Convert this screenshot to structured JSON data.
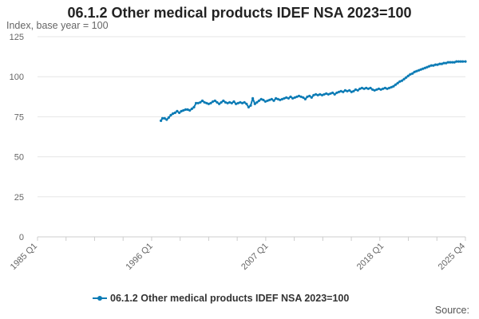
{
  "chart_data": {
    "type": "line",
    "title": "06.1.2 Other medical products IDEF NSA 2023=100",
    "ylabel": "Index, base year = 100",
    "xlabel": "",
    "ylim": [
      0,
      125
    ],
    "yticks": [
      0,
      25,
      50,
      75,
      100,
      125
    ],
    "xlim": [
      1985,
      2025.75
    ],
    "xticks": [
      {
        "label": "1985 Q1",
        "value": 1985
      },
      {
        "label": "1996 Q1",
        "value": 1996
      },
      {
        "label": "2007 Q1",
        "value": 2007
      },
      {
        "label": "2018 Q1",
        "value": 2018
      },
      {
        "label": "2025 Q4",
        "value": 2025.75
      }
    ],
    "series": [
      {
        "name": "06.1.2 Other medical products IDEF NSA 2023=100",
        "color": "#0b7bb5",
        "points": [
          [
            1996.75,
            72.5
          ],
          [
            1996.9,
            74.0
          ],
          [
            1997.1,
            74.0
          ],
          [
            1997.3,
            73.2
          ],
          [
            1997.5,
            74.5
          ],
          [
            1997.7,
            76.0
          ],
          [
            1997.9,
            77.0
          ],
          [
            1998.1,
            77.5
          ],
          [
            1998.3,
            78.5
          ],
          [
            1998.5,
            77.5
          ],
          [
            1998.7,
            78.5
          ],
          [
            1998.9,
            79.0
          ],
          [
            1999.1,
            79.5
          ],
          [
            1999.3,
            79.5
          ],
          [
            1999.5,
            79.0
          ],
          [
            1999.7,
            80.0
          ],
          [
            1999.9,
            81.0
          ],
          [
            2000.1,
            83.5
          ],
          [
            2000.3,
            83.5
          ],
          [
            2000.5,
            84.0
          ],
          [
            2000.7,
            85.0
          ],
          [
            2000.9,
            84.0
          ],
          [
            2001.1,
            83.5
          ],
          [
            2001.3,
            83.0
          ],
          [
            2001.5,
            83.5
          ],
          [
            2001.7,
            84.5
          ],
          [
            2001.9,
            85.0
          ],
          [
            2002.1,
            84.0
          ],
          [
            2002.3,
            83.0
          ],
          [
            2002.5,
            84.0
          ],
          [
            2002.7,
            85.0
          ],
          [
            2002.9,
            84.0
          ],
          [
            2003.1,
            83.5
          ],
          [
            2003.3,
            84.0
          ],
          [
            2003.5,
            83.5
          ],
          [
            2003.7,
            84.5
          ],
          [
            2003.9,
            83.0
          ],
          [
            2004.1,
            83.5
          ],
          [
            2004.3,
            84.0
          ],
          [
            2004.5,
            83.5
          ],
          [
            2004.7,
            84.0
          ],
          [
            2004.9,
            83.0
          ],
          [
            2005.1,
            81.0
          ],
          [
            2005.3,
            82.0
          ],
          [
            2005.5,
            86.5
          ],
          [
            2005.7,
            83.0
          ],
          [
            2005.9,
            84.0
          ],
          [
            2006.1,
            85.0
          ],
          [
            2006.3,
            86.0
          ],
          [
            2006.5,
            85.5
          ],
          [
            2006.7,
            84.5
          ],
          [
            2006.9,
            85.0
          ],
          [
            2007.1,
            85.5
          ],
          [
            2007.3,
            86.0
          ],
          [
            2007.5,
            85.0
          ],
          [
            2007.7,
            86.5
          ],
          [
            2007.9,
            86.0
          ],
          [
            2008.1,
            85.5
          ],
          [
            2008.3,
            86.0
          ],
          [
            2008.5,
            86.5
          ],
          [
            2008.7,
            87.0
          ],
          [
            2008.9,
            86.5
          ],
          [
            2009.1,
            87.5
          ],
          [
            2009.3,
            86.5
          ],
          [
            2009.5,
            87.0
          ],
          [
            2009.7,
            87.5
          ],
          [
            2009.9,
            88.0
          ],
          [
            2010.1,
            87.5
          ],
          [
            2010.3,
            87.0
          ],
          [
            2010.5,
            86.0
          ],
          [
            2010.7,
            87.5
          ],
          [
            2010.9,
            88.0
          ],
          [
            2011.1,
            87.0
          ],
          [
            2011.3,
            88.5
          ],
          [
            2011.5,
            89.0
          ],
          [
            2011.7,
            88.5
          ],
          [
            2011.9,
            89.0
          ],
          [
            2012.1,
            88.5
          ],
          [
            2012.3,
            89.0
          ],
          [
            2012.5,
            89.5
          ],
          [
            2012.7,
            89.0
          ],
          [
            2012.9,
            89.5
          ],
          [
            2013.1,
            90.0
          ],
          [
            2013.3,
            89.0
          ],
          [
            2013.5,
            90.0
          ],
          [
            2013.7,
            90.5
          ],
          [
            2013.9,
            91.0
          ],
          [
            2014.1,
            90.5
          ],
          [
            2014.3,
            91.5
          ],
          [
            2014.5,
            91.0
          ],
          [
            2014.7,
            91.5
          ],
          [
            2014.9,
            90.5
          ],
          [
            2015.1,
            91.0
          ],
          [
            2015.3,
            92.0
          ],
          [
            2015.5,
            91.5
          ],
          [
            2015.7,
            92.5
          ],
          [
            2015.9,
            93.0
          ],
          [
            2016.1,
            92.5
          ],
          [
            2016.3,
            93.0
          ],
          [
            2016.5,
            92.5
          ],
          [
            2016.7,
            93.0
          ],
          [
            2016.9,
            92.0
          ],
          [
            2017.1,
            91.5
          ],
          [
            2017.3,
            92.0
          ],
          [
            2017.5,
            92.5
          ],
          [
            2017.7,
            92.0
          ],
          [
            2017.9,
            92.5
          ],
          [
            2018.1,
            93.0
          ],
          [
            2018.3,
            92.5
          ],
          [
            2018.5,
            93.0
          ],
          [
            2018.7,
            93.5
          ],
          [
            2018.9,
            94.0
          ],
          [
            2019.1,
            95.0
          ],
          [
            2019.3,
            96.0
          ],
          [
            2019.5,
            97.0
          ],
          [
            2019.7,
            97.5
          ],
          [
            2019.9,
            98.5
          ],
          [
            2020.1,
            99.5
          ],
          [
            2020.3,
            100.5
          ],
          [
            2020.5,
            101.5
          ],
          [
            2020.7,
            102.0
          ],
          [
            2020.9,
            103.0
          ],
          [
            2021.1,
            103.5
          ],
          [
            2021.3,
            104.0
          ],
          [
            2021.5,
            104.5
          ],
          [
            2021.7,
            105.0
          ],
          [
            2021.9,
            105.5
          ],
          [
            2022.1,
            106.0
          ],
          [
            2022.3,
            106.5
          ],
          [
            2022.5,
            107.0
          ],
          [
            2022.7,
            107.0
          ],
          [
            2022.9,
            107.5
          ],
          [
            2023.1,
            107.5
          ],
          [
            2023.3,
            108.0
          ],
          [
            2023.5,
            108.0
          ],
          [
            2023.7,
            108.5
          ],
          [
            2023.9,
            108.5
          ],
          [
            2024.1,
            109.0
          ],
          [
            2024.3,
            109.0
          ],
          [
            2024.5,
            109.0
          ],
          [
            2024.7,
            109.0
          ],
          [
            2024.9,
            109.5
          ],
          [
            2025.1,
            109.5
          ],
          [
            2025.3,
            109.5
          ],
          [
            2025.5,
            109.5
          ],
          [
            2025.75,
            109.5
          ]
        ]
      }
    ],
    "legend": "06.1.2 Other medical products IDEF NSA 2023=100",
    "legend_position": "bottom-center",
    "source_label": "Source:",
    "gridlines": true
  }
}
